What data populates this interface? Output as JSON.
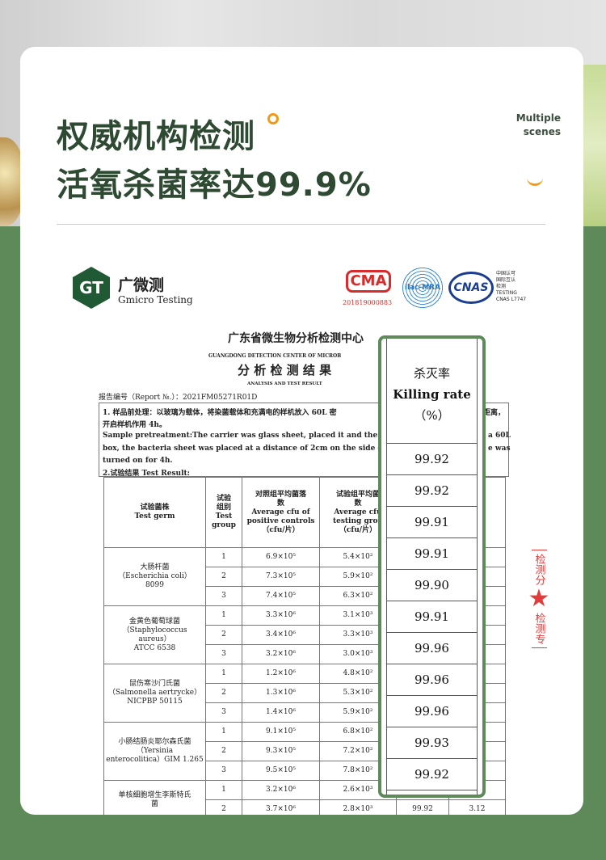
{
  "header": {
    "title_line1": "权威机构检测",
    "title_line2": "活氧杀菌率达99.9%",
    "tag_line1": "Multiple",
    "tag_line2": "scenes"
  },
  "colors": {
    "title": "#2f4a33",
    "accent": "#f29a16",
    "green": "#5e8a5a"
  },
  "report": {
    "logo_mark": "GT",
    "logo_cn": "广微测",
    "logo_en": "Gmicro Testing",
    "cma_mark": "CMA",
    "cma_number": "201819000883",
    "ilac_mark": "ilac-MRA",
    "cnas_mark": "CNAS",
    "cnas_text": [
      "中国认可",
      "国际互认",
      "检测",
      "TESTING",
      "CNAS L7747"
    ],
    "org_cn": "广东省微生物分析检测中心",
    "org_en": "GUANGDONG DETECTION CENTER OF MICROB",
    "title_cn": "分 析 检 测 结 果",
    "title_en": "ANALYSIS AND TEST RESULT",
    "report_no": "报告编号（Report №.）：2021FM05271R01D",
    "pre_cn_a": "1. 样品前处理：以玻璃为载体，将染菌载体和充满电的样机放入 60L 密",
    "pre_cn_b": "距离，",
    "pre_cn_2": "开启样机作用 4h。",
    "pre_en_a": "Sample pretreatment:The carrier was  glass  sheet, placed it and  the  fully",
    "pre_en_b": "a 60L",
    "pre_en_2a": "box, the bacteria sheet was placed at a distance of 2cm on the side of th",
    "pre_en_2b": "e was",
    "pre_en_3": "turned on for 4h.",
    "result_heading": "2.试验结果 Test Result:",
    "table_headers": [
      "试验菌株\nTest germ",
      "试验\n组别\nTest\ngroup",
      "对照组平均菌落\n数\nAverage cfu of\npositive controls\n（cfu/片）",
      "试验组平均菌\n数\nAverage cfu\ntesting grou\n（cfu/片）",
      "",
      "数值\ntion\nm"
    ],
    "germs": [
      {
        "name": "大肠杆菌\n（Escherichia coli）\n8099",
        "rows": [
          [
            "1",
            "6.9×10⁵",
            "5.4×10²"
          ],
          [
            "2",
            "7.3×10⁵",
            "5.9×10²"
          ],
          [
            "3",
            "7.4×10⁵",
            "6.3×10²"
          ]
        ]
      },
      {
        "name": "金黄色葡萄球菌\n（Staphylococcus\naureus）\nATCC 6538",
        "rows": [
          [
            "1",
            "3.3×10⁶",
            "3.1×10³"
          ],
          [
            "2",
            "3.4×10⁶",
            "3.3×10³"
          ],
          [
            "3",
            "3.2×10⁶",
            "3.0×10³"
          ]
        ]
      },
      {
        "name": "鼠伤寒沙门氏菌\n（Salmonella aertrycke）\nNICPBP 50115",
        "rows": [
          [
            "1",
            "1.2×10⁶",
            "4.8×10²"
          ],
          [
            "2",
            "1.3×10⁶",
            "5.3×10²"
          ],
          [
            "3",
            "1.4×10⁶",
            "5.9×10²"
          ]
        ]
      },
      {
        "name": "小肠结肠炎耶尔森氏菌\n（Yersinia\nenterocolitica）GIM 1.265",
        "rows": [
          [
            "1",
            "9.1×10⁵",
            "6.8×10²"
          ],
          [
            "2",
            "9.3×10⁵",
            "7.2×10²"
          ],
          [
            "3",
            "9.5×10⁵",
            "7.8×10²"
          ]
        ]
      },
      {
        "name": "单核细胞增生李斯特氏\n菌",
        "rows": [
          [
            "1",
            "3.2×10⁶",
            "2.6×10³"
          ],
          [
            "2",
            "3.7×10⁶",
            "2.8×10³",
            "99.92",
            "3.12"
          ]
        ]
      }
    ],
    "highlight": {
      "header_cn": "杀灭率",
      "header_en": "Killing rate",
      "header_unit": "（%）",
      "values": [
        "99.92",
        "99.92",
        "99.91",
        "99.91",
        "99.90",
        "99.91",
        "99.96",
        "99.96",
        "99.96",
        "99.93",
        "99.92"
      ]
    },
    "seal_text_top": "检测分",
    "seal_text_bottom": "检测专"
  }
}
